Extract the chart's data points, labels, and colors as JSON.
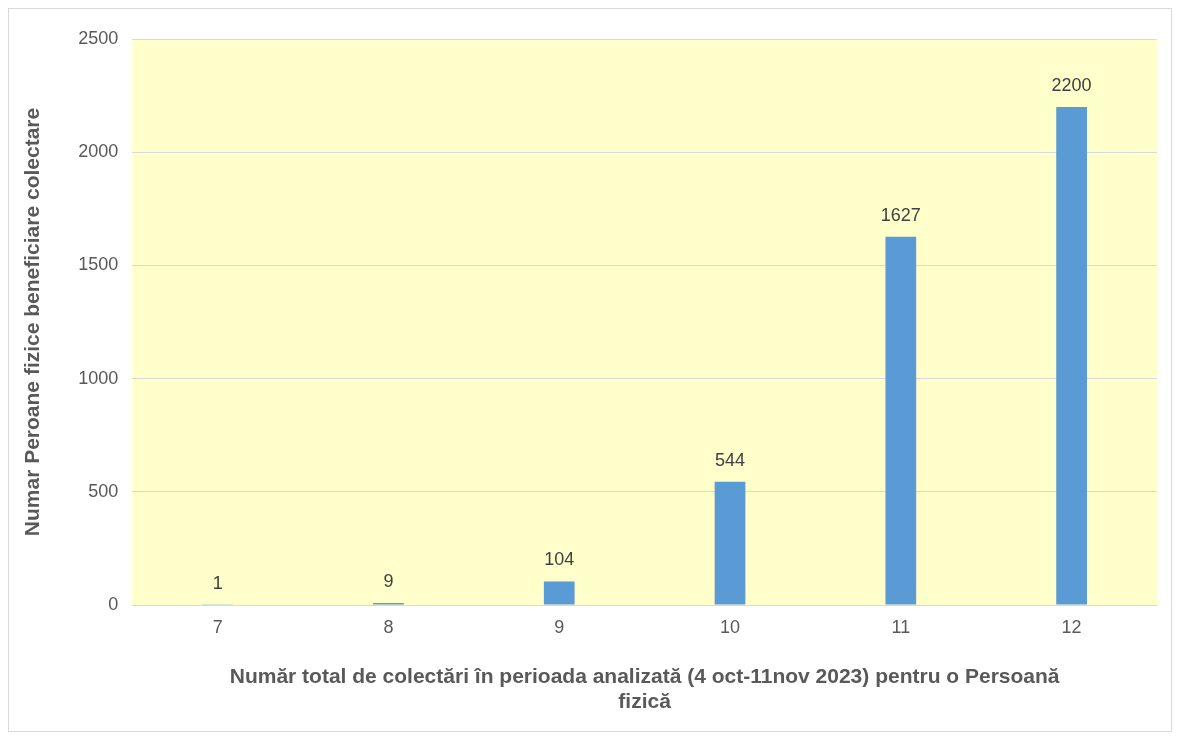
{
  "chart_data": {
    "type": "bar",
    "xlabel": "Număr total de colectări în perioada analizată (4 oct-11nov 2023) pentru o Persoană fizică",
    "ylabel": "Numar Peroane fizice beneficiare colectare",
    "categories": [
      "7",
      "8",
      "9",
      "10",
      "11",
      "12"
    ],
    "values": [
      1,
      9,
      104,
      544,
      1627,
      2200
    ],
    "color": "#5b9bd5",
    "ylim": [
      0,
      2500
    ],
    "yticks": [
      0,
      500,
      1000,
      1500,
      2000,
      2500
    ],
    "grid": "y",
    "data_labels": true
  }
}
